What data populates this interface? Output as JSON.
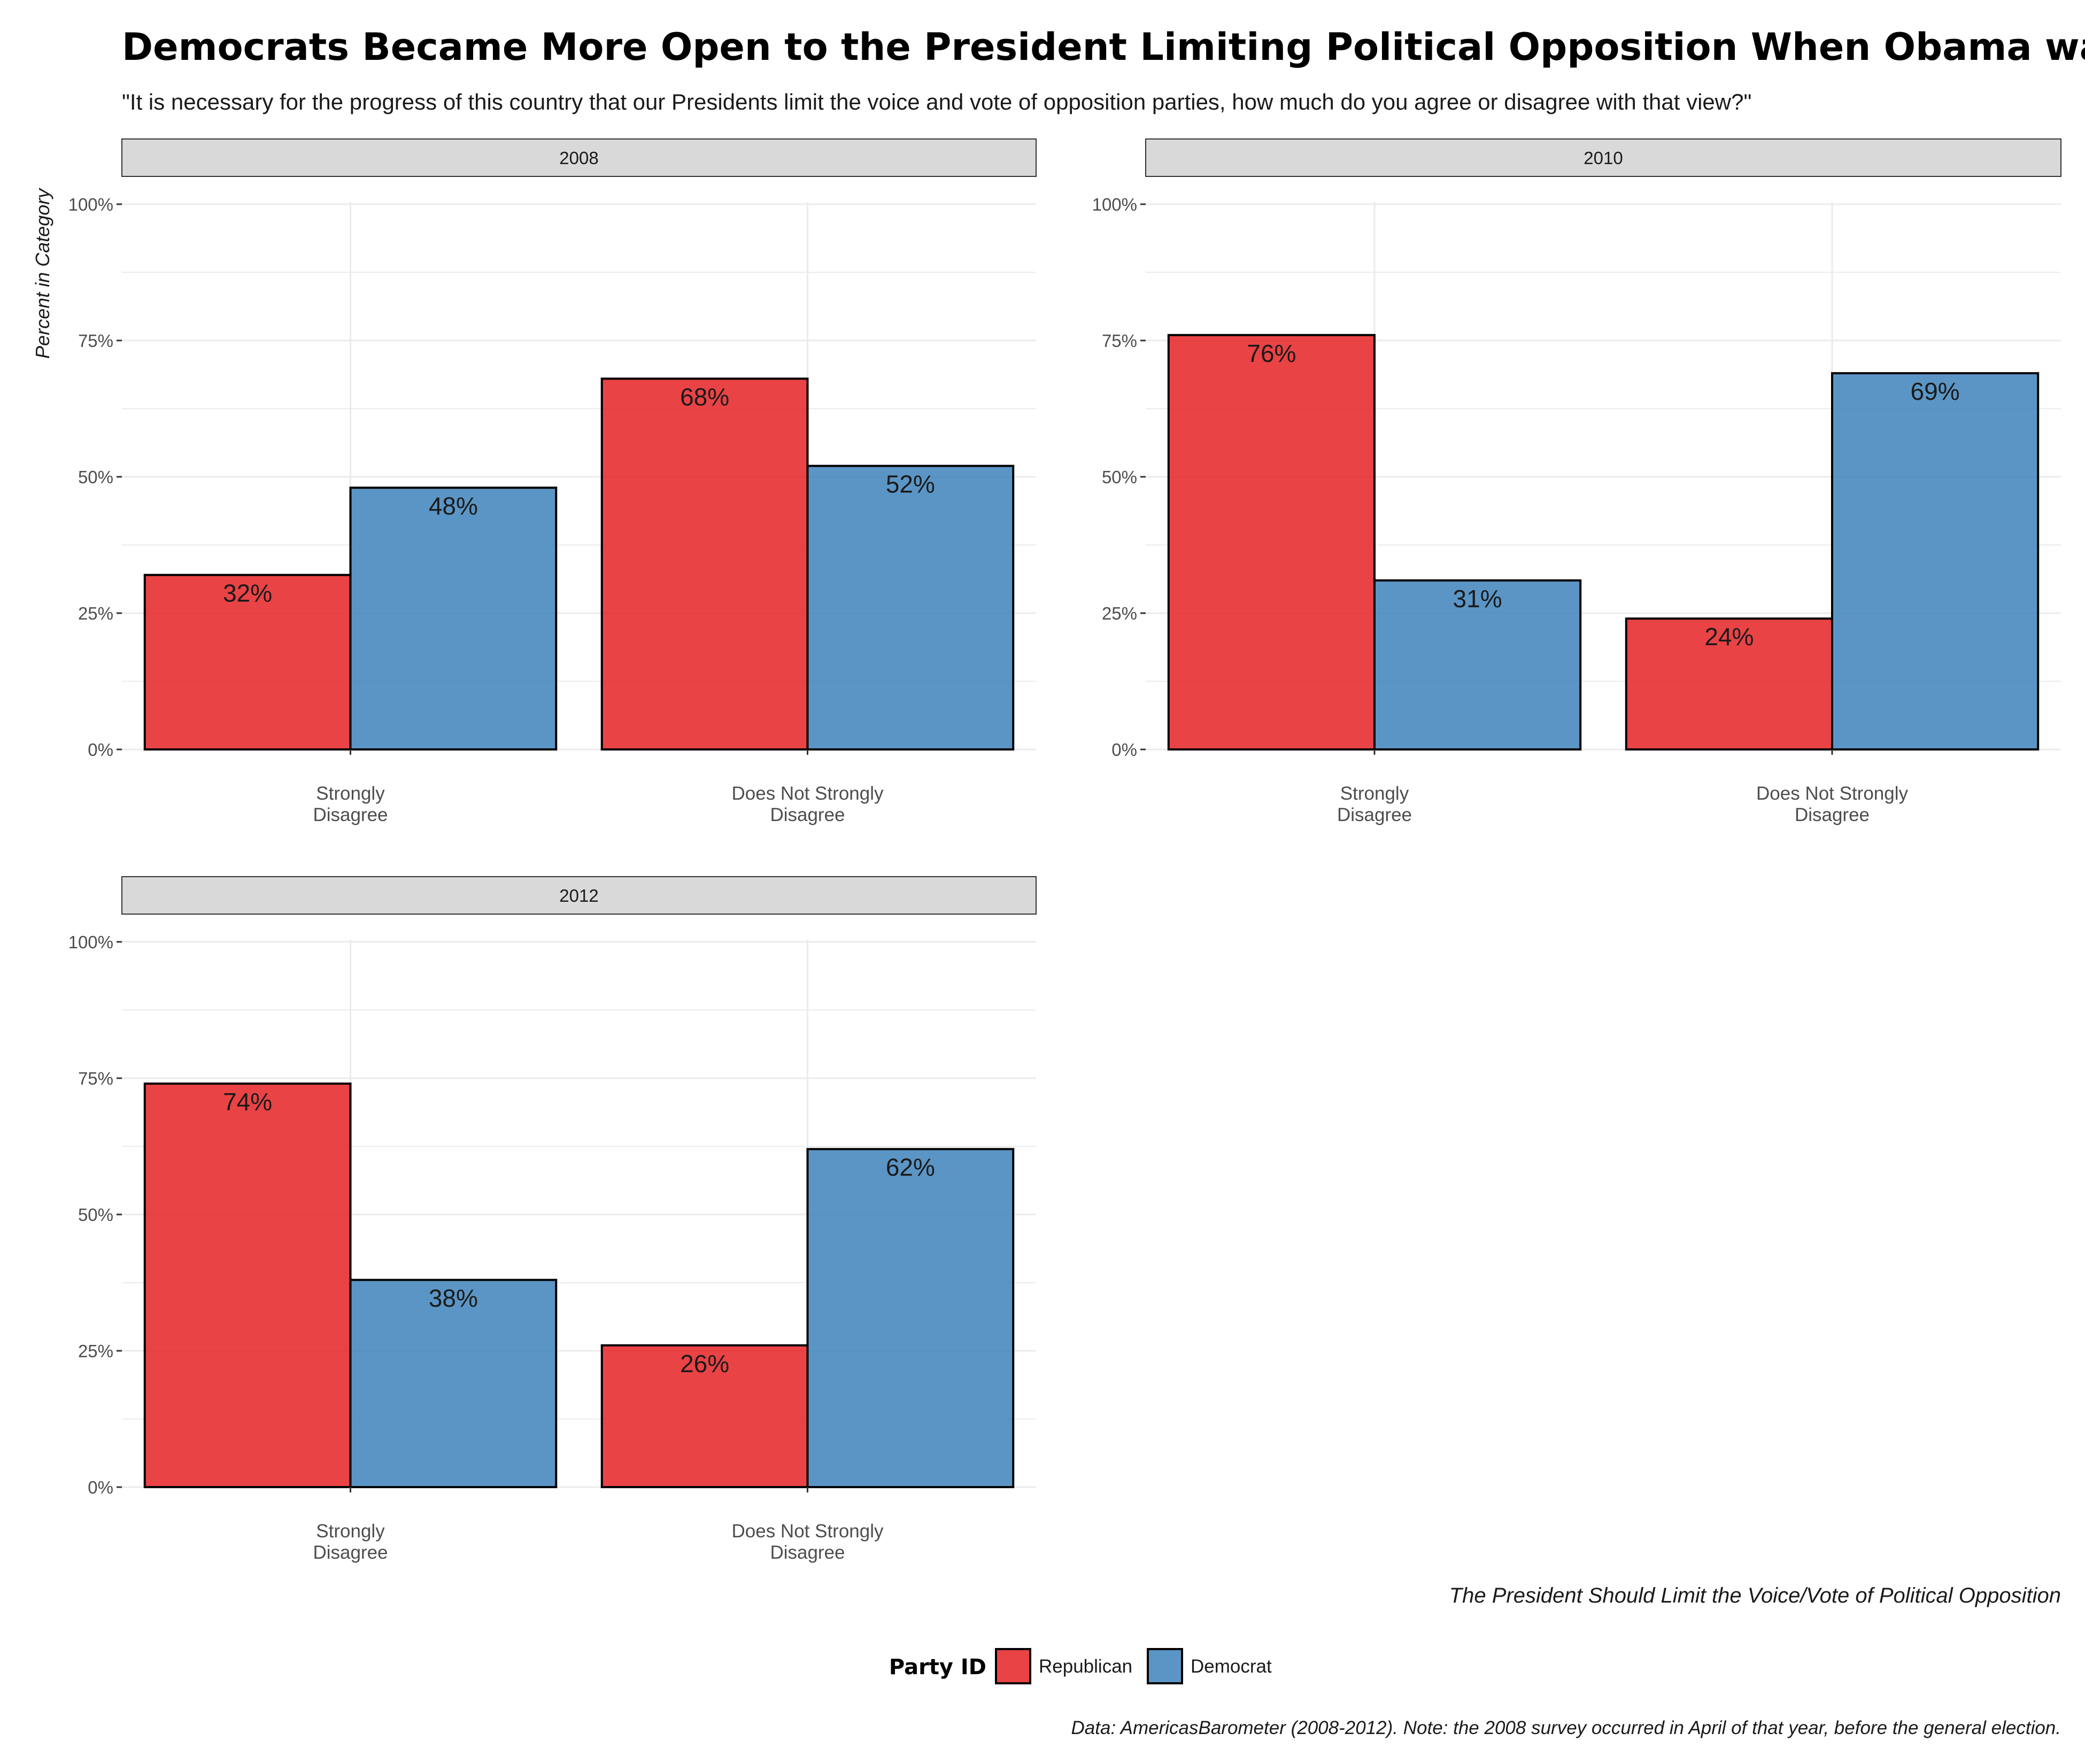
{
  "title": "Democrats Became More Open to the President Limiting Political Opposition When Obama was President",
  "subtitle": "\"It is necessary for the progress of this country that our Presidents limit the voice and vote of opposition parties, how much do you agree or disagree with that view?\"",
  "caption": "Data: AmericasBarometer (2008-2012). Note: the 2008 survey occurred in April of that year, before the general election.",
  "legend": {
    "title": "Party ID",
    "items": [
      {
        "label": "Republican",
        "color": "#E41A1C"
      },
      {
        "label": "Democrat",
        "color": "#377EB8"
      }
    ]
  },
  "colors": {
    "Republican": "#E41A1C",
    "Democrat": "#377EB8",
    "strip_fill": "#D9D9D9",
    "grid": "#EBEBEB"
  },
  "chart_data": {
    "type": "bar",
    "layout": "faceted-grouped",
    "ylabel": "Percent in Category",
    "xlabel": "The President Should Limit the Voice/Vote of Political Opposition",
    "ylim": [
      0,
      100
    ],
    "yticks": [
      "0%",
      "25%",
      "50%",
      "75%",
      "100%"
    ],
    "grid": true,
    "legend_position": "bottom",
    "categories": [
      "Strongly\nDisagree",
      "Does Not Strongly\nDisagree"
    ],
    "series_names": [
      "Republican",
      "Democrat"
    ],
    "facets": [
      {
        "label": "2008",
        "series": [
          {
            "name": "Republican",
            "values": [
              32,
              68
            ],
            "labels": [
              "32%",
              "68%"
            ]
          },
          {
            "name": "Democrat",
            "values": [
              48,
              52
            ],
            "labels": [
              "48%",
              "52%"
            ]
          }
        ]
      },
      {
        "label": "2010",
        "series": [
          {
            "name": "Republican",
            "values": [
              76,
              24
            ],
            "labels": [
              "76%",
              "24%"
            ]
          },
          {
            "name": "Democrat",
            "values": [
              31,
              69
            ],
            "labels": [
              "31%",
              "69%"
            ]
          }
        ]
      },
      {
        "label": "2012",
        "series": [
          {
            "name": "Republican",
            "values": [
              74,
              26
            ],
            "labels": [
              "74%",
              "26%"
            ]
          },
          {
            "name": "Democrat",
            "values": [
              38,
              62
            ],
            "labels": [
              "38%",
              "62%"
            ]
          }
        ]
      }
    ]
  }
}
